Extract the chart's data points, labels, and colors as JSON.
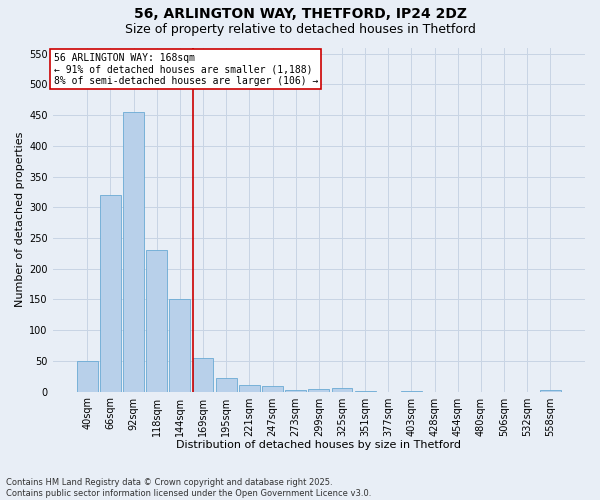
{
  "title1": "56, ARLINGTON WAY, THETFORD, IP24 2DZ",
  "title2": "Size of property relative to detached houses in Thetford",
  "xlabel": "Distribution of detached houses by size in Thetford",
  "ylabel": "Number of detached properties",
  "footer1": "Contains HM Land Registry data © Crown copyright and database right 2025.",
  "footer2": "Contains public sector information licensed under the Open Government Licence v3.0.",
  "categories": [
    "40sqm",
    "66sqm",
    "92sqm",
    "118sqm",
    "144sqm",
    "169sqm",
    "195sqm",
    "221sqm",
    "247sqm",
    "273sqm",
    "299sqm",
    "325sqm",
    "351sqm",
    "377sqm",
    "403sqm",
    "428sqm",
    "454sqm",
    "480sqm",
    "506sqm",
    "532sqm",
    "558sqm"
  ],
  "values": [
    50,
    320,
    455,
    230,
    150,
    55,
    22,
    10,
    9,
    3,
    5,
    6,
    1,
    0,
    1,
    0,
    0,
    0,
    0,
    0,
    3
  ],
  "bar_color": "#b8d0ea",
  "bar_edge_color": "#6aaad4",
  "grid_color": "#c8d4e4",
  "background_color": "#e8eef6",
  "vline_x_idx": 5,
  "vline_color": "#cc0000",
  "annotation_line1": "56 ARLINGTON WAY: 168sqm",
  "annotation_line2": "← 91% of detached houses are smaller (1,188)",
  "annotation_line3": "8% of semi-detached houses are larger (106) →",
  "annotation_box_color": "#ffffff",
  "annotation_border_color": "#cc0000",
  "ylim": [
    0,
    560
  ],
  "yticks": [
    0,
    50,
    100,
    150,
    200,
    250,
    300,
    350,
    400,
    450,
    500,
    550
  ],
  "title_fontsize": 10,
  "subtitle_fontsize": 9,
  "axis_label_fontsize": 8,
  "tick_fontsize": 7,
  "annotation_fontsize": 7,
  "footer_fontsize": 6
}
